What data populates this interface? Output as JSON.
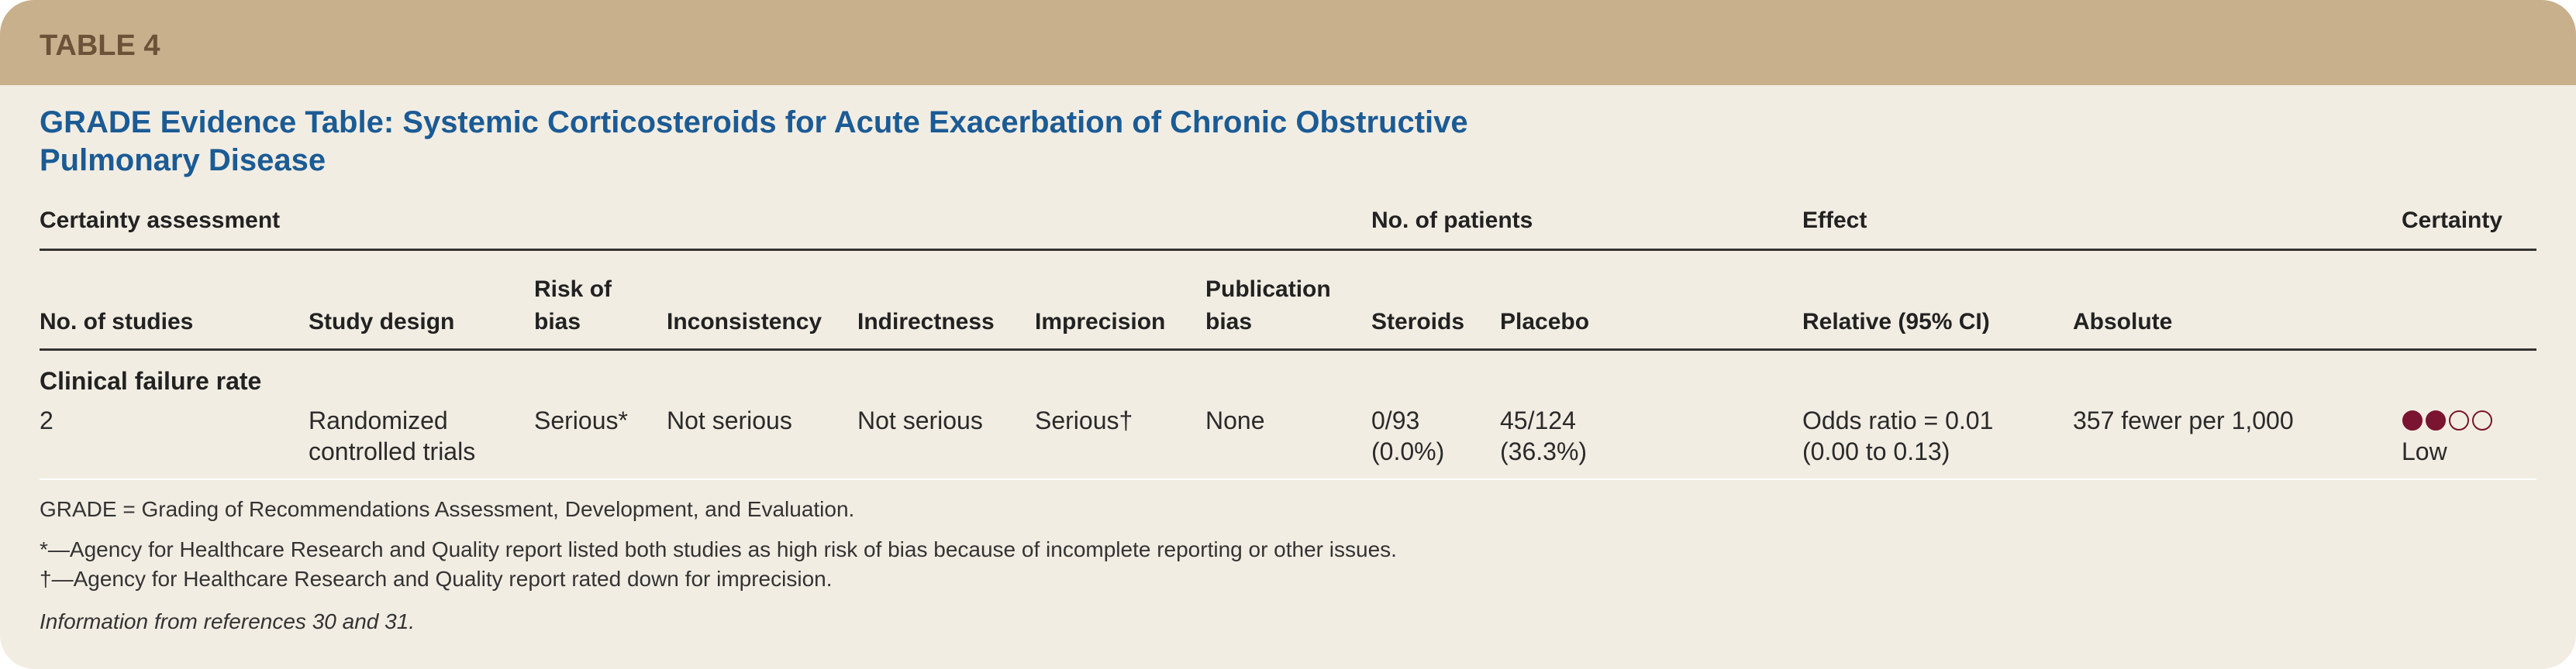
{
  "header": {
    "label": "TABLE 4",
    "title": "GRADE Evidence Table: Systemic Corticosteroids for Acute Exacerbation of Chronic Obstructive Pulmonary Disease"
  },
  "table": {
    "groups": [
      "Certainty assessment",
      "No. of patients",
      "Effect",
      "Certainty"
    ],
    "columns": [
      "No. of studies",
      "Study design",
      "Risk of bias",
      "Inconsistency",
      "Indirectness",
      "Imprecision",
      "Publication bias",
      "Steroids",
      "Placebo",
      "Relative (95% CI)",
      "Absolute"
    ],
    "section": "Clinical failure rate",
    "rows": [
      [
        "2",
        "Randomized controlled trials",
        "Serious*",
        "Not serious",
        "Not serious",
        "Serious†",
        "None",
        "0/93 (0.0%)",
        "45/124 (36.3%)",
        "Odds ratio = 0.01 (0.00 to 0.13)",
        "357 fewer per 1,000",
        "Low"
      ]
    ]
  },
  "footnotes": [
    "GRADE = Grading of Recommendations Assessment, Development, and Evaluation.",
    "*—Agency for Healthcare Research and Quality report listed both studies as high risk of bias because of incomplete reporting or other issues.",
    "†—Agency for Healthcare Research and Quality report rated down for imprecision."
  ],
  "source": "Information from references 30 and 31."
}
